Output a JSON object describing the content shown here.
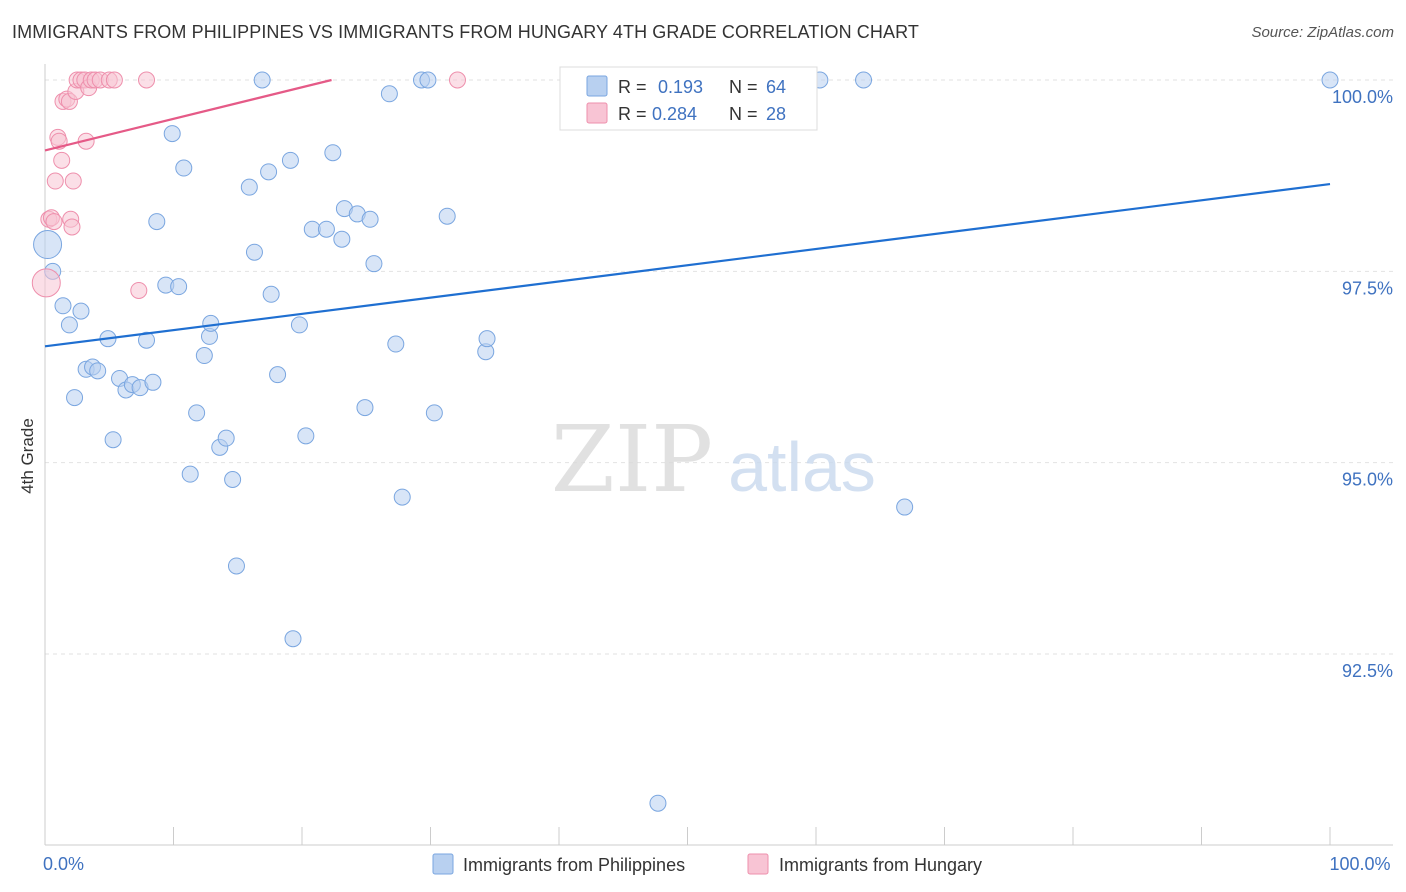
{
  "header": {
    "title": "IMMIGRANTS FROM PHILIPPINES VS IMMIGRANTS FROM HUNGARY 4TH GRADE CORRELATION CHART",
    "source": "Source: ZipAtlas.com"
  },
  "watermark": {
    "zip": "ZIP",
    "atlas": "atlas"
  },
  "colors": {
    "philippines_fill": "#b8d0f0",
    "philippines_stroke": "#7aa6e0",
    "philippines_line": "#1f6fd1",
    "hungary_fill": "#f8c4d4",
    "hungary_stroke": "#ee8fac",
    "hungary_line": "#e55a87",
    "tick_label": "#3f72c0",
    "grid": "#e2e2e2"
  },
  "chart_data": {
    "type": "scatter",
    "title": "IMMIGRANTS FROM PHILIPPINES VS IMMIGRANTS FROM HUNGARY 4TH GRADE CORRELATION CHART",
    "xlabel": "",
    "ylabel": "4th Grade",
    "xlim": [
      0,
      100
    ],
    "ylim": [
      90.2,
      100.2
    ],
    "x_tick_labels": [
      {
        "value": 0,
        "label": "0.0%"
      },
      {
        "value": 100,
        "label": "100.0%"
      }
    ],
    "y_tick_labels": [
      {
        "value": 100.0,
        "label": "100.0%"
      },
      {
        "value": 97.5,
        "label": "97.5%"
      },
      {
        "value": 95.0,
        "label": "95.0%"
      },
      {
        "value": 92.5,
        "label": "92.5%"
      }
    ],
    "legend": [
      {
        "r_label": "R =",
        "r_value": "0.193",
        "n_label": "N =",
        "n_value": "64"
      },
      {
        "r_label": "R =",
        "r_value": "0.284",
        "n_label": "N =",
        "n_value": "28"
      }
    ],
    "series": [
      {
        "name": "Immigrants from Philippines",
        "color": "#b8d0f0",
        "trend": {
          "x": [
            0,
            100
          ],
          "y": [
            96.52,
            98.64
          ]
        },
        "points": [
          [
            0.2,
            97.85
          ],
          [
            0.6,
            97.5
          ],
          [
            1.4,
            97.05
          ],
          [
            1.9,
            96.8
          ],
          [
            2.3,
            95.85
          ],
          [
            2.8,
            96.98
          ],
          [
            3.2,
            96.22
          ],
          [
            3.7,
            96.25
          ],
          [
            4.1,
            96.2
          ],
          [
            4.9,
            96.62
          ],
          [
            5.3,
            95.3
          ],
          [
            5.8,
            96.1
          ],
          [
            6.3,
            95.95
          ],
          [
            6.8,
            96.02
          ],
          [
            7.4,
            95.98
          ],
          [
            7.9,
            96.6
          ],
          [
            8.4,
            96.05
          ],
          [
            8.7,
            98.15
          ],
          [
            9.4,
            97.32
          ],
          [
            9.9,
            99.3
          ],
          [
            10.4,
            97.3
          ],
          [
            10.8,
            98.85
          ],
          [
            11.3,
            94.85
          ],
          [
            11.8,
            95.65
          ],
          [
            12.4,
            96.4
          ],
          [
            12.8,
            96.65
          ],
          [
            12.9,
            96.82
          ],
          [
            13.6,
            95.2
          ],
          [
            14.1,
            95.32
          ],
          [
            14.6,
            94.78
          ],
          [
            14.9,
            93.65
          ],
          [
            15.9,
            98.6
          ],
          [
            16.3,
            97.75
          ],
          [
            16.9,
            100.0
          ],
          [
            17.4,
            98.8
          ],
          [
            17.6,
            97.2
          ],
          [
            18.1,
            96.15
          ],
          [
            19.1,
            98.95
          ],
          [
            19.3,
            92.7
          ],
          [
            19.8,
            96.8
          ],
          [
            20.3,
            95.35
          ],
          [
            20.8,
            98.05
          ],
          [
            21.9,
            98.05
          ],
          [
            22.4,
            99.05
          ],
          [
            23.1,
            97.92
          ],
          [
            23.3,
            98.32
          ],
          [
            24.3,
            98.25
          ],
          [
            24.9,
            95.72
          ],
          [
            25.3,
            98.18
          ],
          [
            25.6,
            97.6
          ],
          [
            26.8,
            99.82
          ],
          [
            27.3,
            96.55
          ],
          [
            27.8,
            94.55
          ],
          [
            29.3,
            100.0
          ],
          [
            29.8,
            100.0
          ],
          [
            30.3,
            95.65
          ],
          [
            31.3,
            98.22
          ],
          [
            34.3,
            96.45
          ],
          [
            34.4,
            96.62
          ],
          [
            47.7,
            90.55
          ],
          [
            60.3,
            100.0
          ],
          [
            63.7,
            100.0
          ],
          [
            66.9,
            94.42
          ],
          [
            100.0,
            100.0
          ]
        ]
      },
      {
        "name": "Immigrants from Hungary",
        "color": "#f8c4d4",
        "trend": {
          "x": [
            0,
            22.3
          ],
          "y": [
            99.08,
            100.0
          ]
        },
        "points": [
          [
            0.1,
            97.35
          ],
          [
            0.3,
            98.18
          ],
          [
            0.5,
            98.2
          ],
          [
            0.7,
            98.15
          ],
          [
            0.8,
            98.68
          ],
          [
            1.0,
            99.25
          ],
          [
            1.1,
            99.2
          ],
          [
            1.3,
            98.95
          ],
          [
            1.4,
            99.72
          ],
          [
            1.7,
            99.75
          ],
          [
            1.9,
            99.72
          ],
          [
            2.0,
            98.18
          ],
          [
            2.1,
            98.08
          ],
          [
            2.2,
            98.68
          ],
          [
            2.4,
            99.85
          ],
          [
            2.5,
            100.0
          ],
          [
            2.8,
            100.0
          ],
          [
            3.1,
            100.0
          ],
          [
            3.2,
            99.2
          ],
          [
            3.4,
            99.9
          ],
          [
            3.6,
            100.0
          ],
          [
            3.9,
            100.0
          ],
          [
            4.3,
            100.0
          ],
          [
            5.0,
            100.0
          ],
          [
            5.4,
            100.0
          ],
          [
            7.3,
            97.25
          ],
          [
            7.9,
            100.0
          ],
          [
            32.1,
            100.0
          ]
        ]
      }
    ]
  }
}
